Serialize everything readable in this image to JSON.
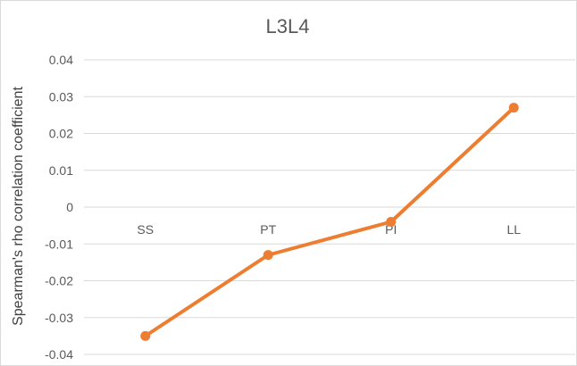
{
  "chart_data": {
    "type": "line",
    "title": "L3L4",
    "xlabel": "",
    "ylabel": "Spearman's rho correlation coefficient",
    "categories": [
      "SS",
      "PT",
      "PI",
      "LL"
    ],
    "series": [
      {
        "values": [
          -0.035,
          -0.013,
          -0.004,
          0.027
        ],
        "color": "#ed7d31"
      }
    ],
    "ylim": [
      -0.04,
      0.04
    ],
    "yticks": [
      0.04,
      0.03,
      0.02,
      0.01,
      0,
      -0.01,
      -0.02,
      -0.03,
      -0.04
    ],
    "ytick_labels": [
      "0.04",
      "0.03",
      "0.02",
      "0.01",
      "0",
      "-0.01",
      "-0.02",
      "-0.03",
      "-0.04"
    ],
    "grid": true,
    "legend": "none",
    "gridline_color": "#d9d9d9"
  }
}
